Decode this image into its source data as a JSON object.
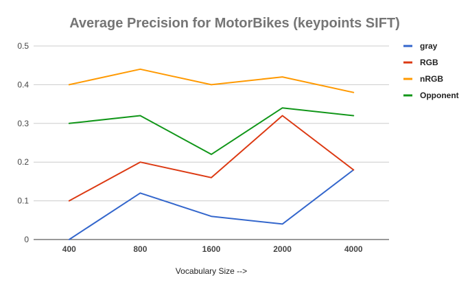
{
  "chart_data": {
    "type": "line",
    "title": "Average Precision for MotorBikes (keypoints SIFT)",
    "xlabel": "Vocabulary Size -->",
    "ylabel": "",
    "categories": [
      "400",
      "800",
      "1600",
      "2000",
      "4000"
    ],
    "ylim": [
      0,
      0.5
    ],
    "yticks": [
      "0",
      "0.1",
      "0.2",
      "0.3",
      "0.4",
      "0.5"
    ],
    "grid": true,
    "legend_position": "right",
    "series": [
      {
        "name": "gray",
        "color": "#3366cc",
        "values": [
          0.0,
          0.12,
          0.06,
          0.04,
          0.18
        ]
      },
      {
        "name": "RGB",
        "color": "#dc3912",
        "values": [
          0.1,
          0.2,
          0.16,
          0.32,
          0.18
        ]
      },
      {
        "name": "nRGB",
        "color": "#ff9900",
        "values": [
          0.4,
          0.44,
          0.4,
          0.42,
          0.38
        ]
      },
      {
        "name": "Opponent",
        "color": "#109618",
        "values": [
          0.3,
          0.32,
          0.22,
          0.34,
          0.32
        ]
      }
    ]
  }
}
